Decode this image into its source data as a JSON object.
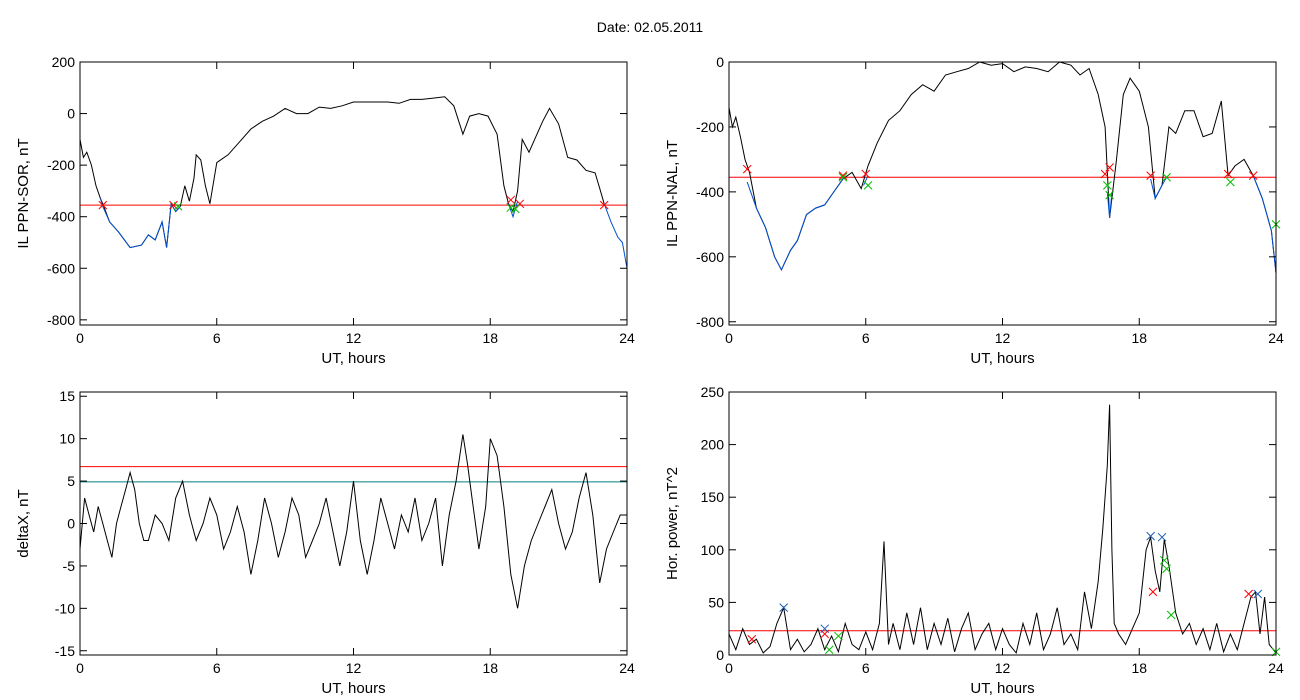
{
  "title": "Date:  02.05.2011",
  "chart_data": [
    {
      "type": "line",
      "ylabel": "IL PPN-SOR, nT",
      "xlabel": "UT, hours",
      "xlim": [
        0,
        24
      ],
      "ylim": [
        -820,
        200
      ],
      "xticks": [
        "0",
        "6",
        "12",
        "18",
        "24"
      ],
      "yticks": [
        "200",
        "0",
        "-200",
        "-400",
        "-600",
        "-800"
      ],
      "threshold_lines": [
        {
          "y": -355,
          "color": "#ff0000"
        }
      ],
      "series": [
        {
          "color": "#000000",
          "x": [
            0,
            0.15,
            0.3,
            0.5,
            0.7,
            0.9,
            1.0,
            1.3,
            1.7,
            2.2,
            2.7,
            3.0,
            3.3,
            3.6,
            3.8,
            4.0,
            4.2,
            4.4,
            4.6,
            4.8,
            5.0,
            5.1,
            5.3,
            5.5,
            5.7,
            6.0,
            6.5,
            7.0,
            7.5,
            8.0,
            8.5,
            9.0,
            9.5,
            10.0,
            10.5,
            11.0,
            11.5,
            12.0,
            12.5,
            13.0,
            13.5,
            14.0,
            14.5,
            15.0,
            15.5,
            16.0,
            16.4,
            16.8,
            17.1,
            17.5,
            17.9,
            18.3,
            18.6,
            18.8,
            19.0,
            19.2,
            19.4,
            19.7,
            20.0,
            20.3,
            20.6,
            21.0,
            21.4,
            21.8,
            22.2,
            22.6,
            22.8,
            23.0
          ],
          "y": [
            -100,
            -170,
            -150,
            -200,
            -280,
            -330,
            -350,
            -420,
            -460,
            -520,
            -510,
            -470,
            -490,
            -420,
            -520,
            -350,
            -380,
            -360,
            -280,
            -340,
            -250,
            -160,
            -180,
            -280,
            -350,
            -190,
            -160,
            -110,
            -60,
            -30,
            -10,
            20,
            0,
            0,
            25,
            20,
            30,
            45,
            45,
            45,
            45,
            40,
            55,
            55,
            60,
            65,
            30,
            -80,
            -10,
            0,
            -10,
            -80,
            -280,
            -350,
            -380,
            -300,
            -100,
            -150,
            -90,
            -30,
            20,
            -40,
            -170,
            -180,
            -220,
            -230,
            -290,
            -350
          ]
        },
        {
          "color": "#0050d0",
          "x": [
            0.9,
            1.0,
            1.3,
            1.7,
            2.2,
            2.7,
            3.0,
            3.3,
            3.6,
            3.8,
            4.0,
            4.2,
            4.4
          ],
          "y": [
            -330,
            -360,
            -420,
            -460,
            -520,
            -510,
            -470,
            -490,
            -420,
            -520,
            -350,
            -380,
            -360
          ]
        },
        {
          "color": "#0050d0",
          "x": [
            18.8,
            19.0,
            19.2
          ],
          "y": [
            -350,
            -400,
            -340
          ]
        },
        {
          "color": "#0050d0",
          "x": [
            23.0,
            23.3,
            23.6,
            23.8,
            24.0
          ],
          "y": [
            -350,
            -420,
            -480,
            -500,
            -600
          ]
        }
      ],
      "markers": [
        {
          "color": "#ff0000",
          "x": [
            1.0,
            4.1,
            18.9,
            19.3,
            23.0
          ],
          "y": [
            -355,
            -355,
            -335,
            -350,
            -355
          ]
        },
        {
          "color": "#00c000",
          "x": [
            4.3,
            18.9,
            19.1
          ],
          "y": [
            -360,
            -365,
            -370
          ]
        }
      ]
    },
    {
      "type": "line",
      "ylabel": "IL PPN-NAL, nT",
      "xlabel": "UT, hours",
      "xlim": [
        0,
        24
      ],
      "ylim": [
        -810,
        0
      ],
      "xticks": [
        "0",
        "6",
        "12",
        "18",
        "24"
      ],
      "yticks": [
        "0",
        "-200",
        "-400",
        "-600",
        "-800"
      ],
      "threshold_lines": [
        {
          "y": -355,
          "color": "#ff0000"
        }
      ],
      "series": [
        {
          "color": "#000000",
          "x": [
            0,
            0.15,
            0.3,
            0.5,
            0.7,
            0.9,
            1.2,
            1.6,
            2.0,
            2.3,
            2.7,
            3.0,
            3.4,
            3.8,
            4.2,
            4.6,
            5.0,
            5.4,
            5.8,
            6.1,
            6.5,
            7.0,
            7.5,
            8.0,
            8.5,
            9.0,
            9.5,
            10.0,
            10.5,
            11.0,
            11.5,
            12.0,
            12.5,
            13.0,
            13.5,
            14.0,
            14.5,
            15.0,
            15.4,
            15.8,
            16.2,
            16.5,
            16.7,
            17.0,
            17.3,
            17.6,
            18.0,
            18.4,
            18.7,
            19.0,
            19.3,
            19.6,
            20.0,
            20.4,
            20.8,
            21.2,
            21.6,
            21.9,
            22.2,
            22.6,
            23.0,
            23.4,
            23.8,
            24.0
          ],
          "y": [
            -140,
            -200,
            -170,
            -230,
            -300,
            -340,
            -450,
            -510,
            -600,
            -640,
            -580,
            -550,
            -470,
            -450,
            -440,
            -400,
            -360,
            -340,
            -390,
            -320,
            -250,
            -180,
            -150,
            -100,
            -70,
            -90,
            -40,
            -30,
            -20,
            0,
            -10,
            -5,
            -30,
            -15,
            -20,
            -30,
            0,
            -10,
            -40,
            -20,
            -100,
            -200,
            -480,
            -300,
            -100,
            -50,
            -90,
            -200,
            -420,
            -380,
            -200,
            -220,
            -150,
            -150,
            -230,
            -220,
            -120,
            -350,
            -320,
            -300,
            -350,
            -420,
            -520,
            -650
          ]
        },
        {
          "color": "#0050d0",
          "x": [
            0.8,
            1.2,
            1.6,
            2.0,
            2.3,
            2.7,
            3.0,
            3.4,
            3.8,
            4.2,
            4.6,
            5.0
          ],
          "y": [
            -370,
            -450,
            -510,
            -600,
            -640,
            -580,
            -550,
            -470,
            -450,
            -440,
            -400,
            -360
          ]
        },
        {
          "color": "#0050d0",
          "x": [
            5.9,
            6.1
          ],
          "y": [
            -380,
            -350
          ]
        },
        {
          "color": "#0050d0",
          "x": [
            16.6,
            16.7,
            16.8
          ],
          "y": [
            -400,
            -480,
            -400
          ]
        },
        {
          "color": "#0050d0",
          "x": [
            18.5,
            18.7,
            19.0,
            19.2
          ],
          "y": [
            -360,
            -420,
            -380,
            -355
          ]
        },
        {
          "color": "#0050d0",
          "x": [
            23.0,
            23.4,
            23.8,
            24.0
          ],
          "y": [
            -350,
            -420,
            -520,
            -650
          ]
        }
      ],
      "markers": [
        {
          "color": "#ff0000",
          "x": [
            0.8,
            5.0,
            6.0,
            16.5,
            16.7,
            18.5,
            21.9,
            23.0
          ],
          "y": [
            -330,
            -350,
            -345,
            -345,
            -325,
            -350,
            -345,
            -350
          ]
        },
        {
          "color": "#00c000",
          "x": [
            5.0,
            6.1,
            16.6,
            16.7,
            19.2,
            22.0,
            24.0
          ],
          "y": [
            -355,
            -380,
            -380,
            -410,
            -355,
            -370,
            -500
          ]
        }
      ]
    },
    {
      "type": "line",
      "ylabel": "deltaX, nT",
      "xlabel": "UT, hours",
      "xlim": [
        0,
        24
      ],
      "ylim": [
        -15.5,
        15.5
      ],
      "xticks": [
        "0",
        "6",
        "12",
        "18",
        "24"
      ],
      "yticks": [
        "15",
        "10",
        "5",
        "0",
        "-5",
        "-10",
        "-15"
      ],
      "threshold_lines": [
        {
          "y": 6.7,
          "color": "#ff0000"
        },
        {
          "y": 4.9,
          "color": "#008080"
        }
      ],
      "series": [
        {
          "color": "#000000",
          "x": [
            0,
            0.2,
            0.4,
            0.6,
            0.8,
            1.0,
            1.2,
            1.4,
            1.6,
            1.8,
            2.0,
            2.2,
            2.4,
            2.6,
            2.8,
            3.0,
            3.3,
            3.6,
            3.9,
            4.2,
            4.5,
            4.8,
            5.1,
            5.4,
            5.7,
            6.0,
            6.3,
            6.6,
            6.9,
            7.2,
            7.5,
            7.8,
            8.1,
            8.4,
            8.7,
            9.0,
            9.3,
            9.6,
            9.9,
            10.2,
            10.5,
            10.8,
            11.1,
            11.4,
            11.7,
            12.0,
            12.3,
            12.6,
            12.9,
            13.2,
            13.5,
            13.8,
            14.1,
            14.4,
            14.7,
            15.0,
            15.3,
            15.6,
            15.9,
            16.2,
            16.5,
            16.8,
            17.0,
            17.2,
            17.5,
            17.8,
            18.0,
            18.3,
            18.6,
            18.9,
            19.2,
            19.5,
            19.8,
            20.1,
            20.4,
            20.7,
            21.0,
            21.3,
            21.6,
            21.9,
            22.2,
            22.5,
            22.8,
            23.1,
            23.4,
            23.7,
            24.0
          ],
          "y": [
            -3,
            3,
            1,
            -1,
            2,
            0,
            -2,
            -4,
            0,
            2,
            4,
            6,
            4,
            0,
            -2,
            -2,
            1,
            0,
            -2,
            3,
            5,
            1,
            -2,
            0,
            3,
            1,
            -3,
            -1,
            2,
            -1,
            -6,
            -2,
            3,
            0,
            -4,
            -1,
            3,
            1,
            -4,
            -2,
            0,
            3,
            -1,
            -5,
            -1,
            5,
            -2,
            -6,
            -2,
            3,
            0,
            -3,
            1,
            -1,
            3,
            -2,
            0,
            3,
            -5,
            1,
            5,
            10.5,
            7,
            3,
            -3,
            2,
            10,
            8,
            2,
            -6,
            -10,
            -5,
            -2,
            0,
            2,
            4,
            0,
            -3,
            -1,
            3,
            6,
            1,
            -7,
            -3,
            -1,
            1,
            1
          ]
        }
      ],
      "markers": []
    },
    {
      "type": "line",
      "ylabel": "Hor. power, nT^2",
      "xlabel": "UT, hours",
      "xlim": [
        0,
        24
      ],
      "ylim": [
        0,
        250
      ],
      "xticks": [
        "0",
        "6",
        "12",
        "18",
        "24"
      ],
      "yticks": [
        "250",
        "200",
        "150",
        "100",
        "50",
        "0"
      ],
      "threshold_lines": [
        {
          "y": 23,
          "color": "#ff0000"
        }
      ],
      "series": [
        {
          "color": "#000000",
          "x": [
            0,
            0.3,
            0.6,
            0.9,
            1.2,
            1.5,
            1.8,
            2.1,
            2.4,
            2.7,
            3.0,
            3.3,
            3.6,
            3.9,
            4.2,
            4.5,
            4.8,
            5.1,
            5.4,
            5.7,
            6.0,
            6.3,
            6.6,
            6.8,
            7.0,
            7.2,
            7.5,
            7.8,
            8.1,
            8.4,
            8.7,
            9.0,
            9.3,
            9.6,
            9.9,
            10.2,
            10.5,
            10.8,
            11.1,
            11.4,
            11.7,
            12.0,
            12.3,
            12.6,
            12.9,
            13.2,
            13.5,
            13.8,
            14.1,
            14.4,
            14.7,
            15.0,
            15.3,
            15.6,
            15.9,
            16.2,
            16.4,
            16.6,
            16.7,
            16.8,
            16.9,
            17.1,
            17.4,
            17.7,
            18.0,
            18.3,
            18.5,
            18.7,
            18.9,
            19.1,
            19.3,
            19.6,
            19.9,
            20.2,
            20.5,
            20.8,
            21.1,
            21.4,
            21.7,
            22.0,
            22.3,
            22.6,
            22.9,
            23.1,
            23.3,
            23.5,
            23.7,
            24.0
          ],
          "y": [
            20,
            5,
            25,
            10,
            15,
            2,
            8,
            30,
            45,
            5,
            15,
            3,
            10,
            25,
            5,
            18,
            3,
            30,
            10,
            5,
            22,
            5,
            30,
            108,
            10,
            30,
            5,
            40,
            10,
            45,
            5,
            30,
            10,
            35,
            3,
            25,
            40,
            5,
            20,
            30,
            5,
            25,
            10,
            2,
            30,
            10,
            40,
            5,
            20,
            45,
            10,
            20,
            5,
            60,
            25,
            70,
            120,
            180,
            238,
            100,
            30,
            20,
            10,
            25,
            40,
            100,
            112,
            80,
            60,
            110,
            85,
            40,
            20,
            30,
            10,
            25,
            5,
            30,
            3,
            20,
            5,
            30,
            55,
            60,
            20,
            55,
            10,
            2
          ]
        }
      ],
      "markers": [
        {
          "color": "#ff0000",
          "x": [
            1.0,
            4.2,
            18.6,
            22.8
          ],
          "y": [
            15,
            20,
            60,
            58
          ]
        },
        {
          "color": "#1a5fb4",
          "x": [
            2.4,
            4.2,
            18.5,
            19.0,
            23.2
          ],
          "y": [
            45,
            25,
            113,
            112,
            58
          ]
        },
        {
          "color": "#00c000",
          "x": [
            4.4,
            4.8,
            19.1,
            19.2,
            19.4,
            24.0
          ],
          "y": [
            5,
            18,
            90,
            82,
            38,
            3
          ]
        }
      ]
    }
  ]
}
